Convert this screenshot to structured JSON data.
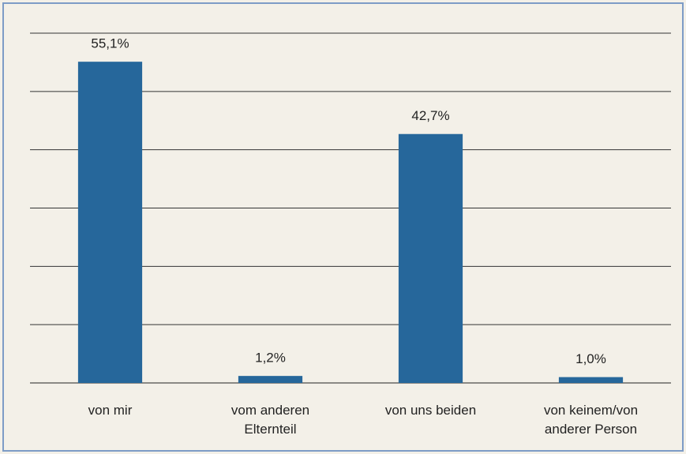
{
  "chart_data": {
    "type": "bar",
    "categories": [
      "von mir",
      "vom anderen Elternteil",
      "von uns beiden",
      "von keinem/von anderer Person"
    ],
    "values": [
      55.1,
      1.2,
      42.7,
      1.0
    ],
    "value_labels": [
      "55,1%",
      "1,2%",
      "42,7%",
      "1,0%"
    ],
    "color": "#26679b",
    "ylim": [
      0,
      60
    ],
    "yticks": [
      0,
      10,
      20,
      30,
      40,
      50,
      60
    ],
    "grid": true
  }
}
